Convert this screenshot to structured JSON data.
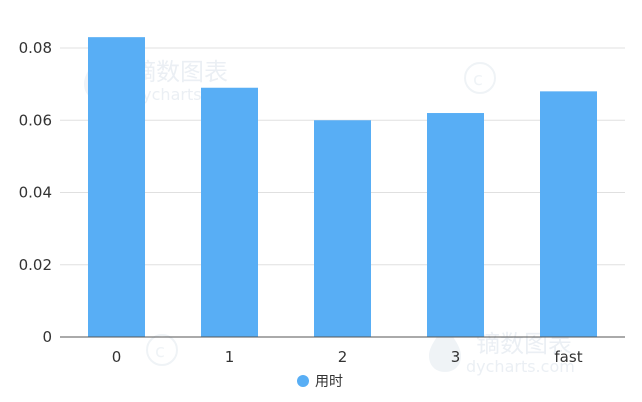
{
  "chart_data": {
    "type": "bar",
    "categories": [
      "0",
      "1",
      "2",
      "3",
      "fast"
    ],
    "series": [
      {
        "name": "用时",
        "values": [
          0.083,
          0.069,
          0.06,
          0.062,
          0.068
        ],
        "color": "#58aef5"
      }
    ],
    "yticks": [
      "0",
      "0.02",
      "0.04",
      "0.06",
      "0.08"
    ],
    "ylim": [
      0,
      0.08
    ],
    "grid": true,
    "legend_position": "bottom-center"
  },
  "watermark": {
    "text": "镝数图表",
    "subtext": "dycharts.com"
  }
}
